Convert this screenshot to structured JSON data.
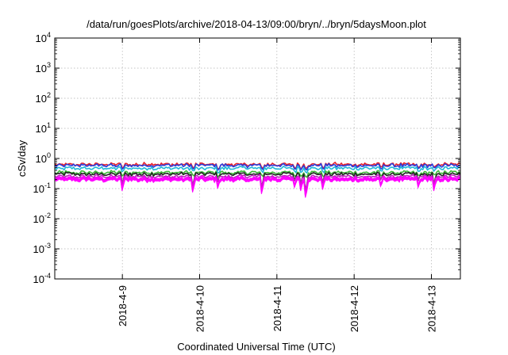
{
  "chart_data": {
    "type": "line",
    "title": "/data/run/goesPlots/archive/2018-04-13/09:00/bryn/../bryn/5daysMoon.plot",
    "xlabel": "Coordinated Universal Time (UTC)",
    "ylabel": "cSv/day",
    "yscale": "log",
    "ylim": [
      0.0001,
      10000
    ],
    "xlim": [
      "2018-04-08 03:00",
      "2018-04-13 09:00"
    ],
    "grid": true,
    "legend": "none",
    "y_ticks": [
      {
        "base": "10",
        "exp": "-4"
      },
      {
        "base": "10",
        "exp": "-3"
      },
      {
        "base": "10",
        "exp": "-2"
      },
      {
        "base": "10",
        "exp": "-1"
      },
      {
        "base": "10",
        "exp": "0"
      },
      {
        "base": "10",
        "exp": "1"
      },
      {
        "base": "10",
        "exp": "2"
      },
      {
        "base": "10",
        "exp": "3"
      },
      {
        "base": "10",
        "exp": "4"
      }
    ],
    "x_ticks": [
      {
        "date": "2018-04-09",
        "label": "2018-4-9"
      },
      {
        "date": "2018-04-10",
        "label": "2018-4-10"
      },
      {
        "date": "2018-04-11",
        "label": "2018-4-11"
      },
      {
        "date": "2018-04-12",
        "label": "2018-4-12"
      },
      {
        "date": "2018-04-13",
        "label": "2018-4-13"
      }
    ],
    "series": [
      {
        "color": "#e8202a",
        "base": 0.63,
        "fill": false
      },
      {
        "color": "#2a3fdc",
        "base": 0.58,
        "fill": false
      },
      {
        "color": "#22b8d8",
        "base": 0.47,
        "fill": false
      },
      {
        "color": "#3fb83a",
        "base": 0.34,
        "fill": false
      },
      {
        "color": "#222222",
        "base": 0.3,
        "fill": false
      },
      {
        "color": "#c020c0",
        "base": 0.25,
        "fill": false
      },
      {
        "color": "#ff00ff",
        "base": 0.22,
        "fill": true
      }
    ],
    "dips": [
      {
        "t": "2018-04-09 00:00",
        "y": 0.1
      },
      {
        "t": "2018-04-09 22:00",
        "y": 0.09
      },
      {
        "t": "2018-04-10 05:30",
        "y": 0.12
      },
      {
        "t": "2018-04-10 19:00",
        "y": 0.08
      },
      {
        "t": "2018-04-11 05:30",
        "y": 0.13
      },
      {
        "t": "2018-04-11 07:30",
        "y": 0.1
      },
      {
        "t": "2018-04-11 09:00",
        "y": 0.06
      },
      {
        "t": "2018-04-11 14:00",
        "y": 0.11
      },
      {
        "t": "2018-04-12 08:00",
        "y": 0.14
      },
      {
        "t": "2018-04-12 20:00",
        "y": 0.13
      },
      {
        "t": "2018-04-13 00:30",
        "y": 0.1
      }
    ]
  }
}
